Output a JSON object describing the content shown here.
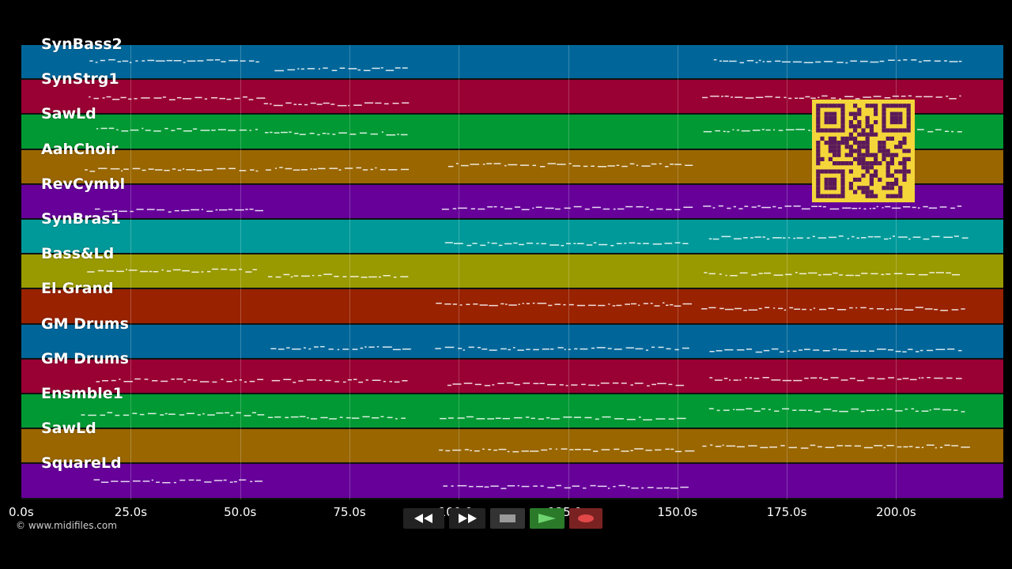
{
  "tracks": [
    {
      "name": "SynBass2",
      "color": "#006699"
    },
    {
      "name": "SynStrg1",
      "color": "#990033"
    },
    {
      "name": "SawLd",
      "color": "#009933"
    },
    {
      "name": "AahChoir",
      "color": "#996600"
    },
    {
      "name": "RevCymbl",
      "color": "#660099"
    },
    {
      "name": "SynBras1",
      "color": "#009999"
    },
    {
      "name": "Bass&Ld",
      "color": "#999900"
    },
    {
      "name": "El.Grand",
      "color": "#992200"
    },
    {
      "name": "GM Drums",
      "color": "#006699"
    },
    {
      "name": "GM Drums",
      "color": "#990033"
    },
    {
      "name": "Ensmble1",
      "color": "#009933"
    },
    {
      "name": "SawLd",
      "color": "#996600"
    },
    {
      "name": "SquareLd",
      "color": "#660099"
    }
  ],
  "timeline": {
    "max_seconds": 224.5,
    "ticks": [
      {
        "label": "0.0s",
        "seconds": 0
      },
      {
        "label": "25.0s",
        "seconds": 25
      },
      {
        "label": "50.0s",
        "seconds": 50
      },
      {
        "label": "75.0s",
        "seconds": 75
      },
      {
        "label": "100.0s",
        "seconds": 100
      },
      {
        "label": "125.0s",
        "seconds": 125
      },
      {
        "label": "150.0s",
        "seconds": 150
      },
      {
        "label": "175.0s",
        "seconds": 175
      },
      {
        "label": "200.0s",
        "seconds": 200
      }
    ]
  },
  "credit": "© www.midifiles.com",
  "transport": {
    "rewind_icon": "rewind-icon",
    "fastforward_icon": "fast-forward-icon",
    "stop_icon": "stop-icon",
    "play_icon": "play-icon",
    "record_icon": "record-icon",
    "colors": {
      "button_bg": "#222222",
      "play_bg": "#2a7a2a",
      "record_bg": "#7a2222"
    }
  },
  "qr_code": {
    "icon": "qr-code-icon",
    "color": "#f4d63a",
    "dark": "#5a1a5a"
  }
}
